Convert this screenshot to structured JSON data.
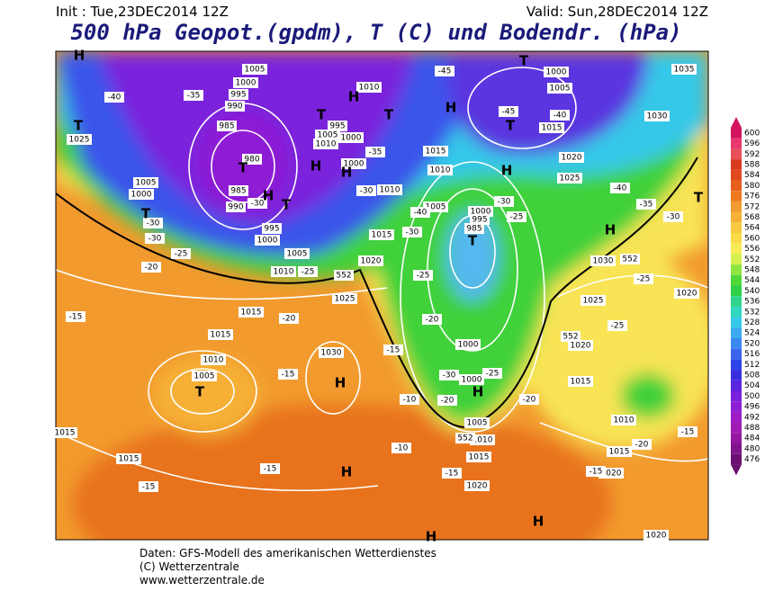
{
  "header": {
    "init": "Init : Tue,23DEC2014 12Z",
    "valid": "Valid: Sun,28DEC2014 12Z",
    "title": "500 hPa Geopot.(gpdm), T (C) und Bodendr. (hPa)"
  },
  "colorbar": {
    "values": [
      600,
      596,
      592,
      588,
      584,
      580,
      576,
      572,
      568,
      564,
      560,
      556,
      552,
      548,
      544,
      540,
      536,
      532,
      528,
      524,
      520,
      516,
      512,
      508,
      504,
      500,
      496,
      492,
      488,
      484,
      480,
      476
    ],
    "colors": [
      "#d4145f",
      "#e8386e",
      "#e8505a",
      "#d83a1e",
      "#e04a1e",
      "#e8601e",
      "#ee7a20",
      "#f29a2e",
      "#f5b035",
      "#f8c840",
      "#fadb48",
      "#f8ec55",
      "#d4f050",
      "#8ee640",
      "#4fd83a",
      "#2fcf4a",
      "#2fd48c",
      "#30d8c0",
      "#35c8e8",
      "#3aaaf0",
      "#3a88f0",
      "#3a66ee",
      "#2e44e8",
      "#3a2ee0",
      "#5a24e0",
      "#7a20dc",
      "#8e1ed4",
      "#9c1cc8",
      "#a01ab4",
      "#9418a0",
      "#80148a",
      "#6a1070"
    ]
  },
  "pressure_labels": [
    "1005",
    "1000",
    "995",
    "990",
    "985",
    "980",
    "985",
    "990",
    "995",
    "1000",
    "1005",
    "1010",
    "1005",
    "1000",
    "1025",
    "995",
    "1005",
    "1000",
    "1010",
    "1000",
    "1010",
    "1015",
    "1020",
    "1025",
    "1015",
    "1015",
    "1010",
    "1005",
    "1030",
    "1015",
    "1015",
    "1010",
    "1015",
    "1010",
    "1005",
    "1000",
    "995",
    "985",
    "1000",
    "1005",
    "1015",
    "1020",
    "1025",
    "1035",
    "1030",
    "1030",
    "1025",
    "1020",
    "1015",
    "1010",
    "1015",
    "1020",
    "1020",
    "1000",
    "1000",
    "1005",
    "1010",
    "1015",
    "1020",
    "1020"
  ],
  "temperature_labels": [
    "-40",
    "-35",
    "-45",
    "-45",
    "-40",
    "-35",
    "-30",
    "-30",
    "-30",
    "-30",
    "-25",
    "-20",
    "-30",
    "-40",
    "-25",
    "-25",
    "-25",
    "-30",
    "-20",
    "-20",
    "-15",
    "-15",
    "-15",
    "-10",
    "-10",
    "-15",
    "-15",
    "-15",
    "-15",
    "-15",
    "-20",
    "-20",
    "-25",
    "-30",
    "-20",
    "-35",
    "-40",
    "-30",
    "-25",
    "-25",
    "552",
    "552",
    "552",
    "552"
  ],
  "centers": [
    "T",
    "H",
    "T",
    "T",
    "H",
    "T",
    "H",
    "T",
    "H",
    "T",
    "H",
    "H",
    "H",
    "T",
    "T",
    "T",
    "H",
    "T",
    "T",
    "H",
    "H",
    "H",
    "H",
    "H"
  ],
  "footer": [
    "Daten: GFS-Modell des amerikanischen Wetterdienstes",
    "(C) Wetterzentrale",
    "www.wetterzentrale.de"
  ]
}
